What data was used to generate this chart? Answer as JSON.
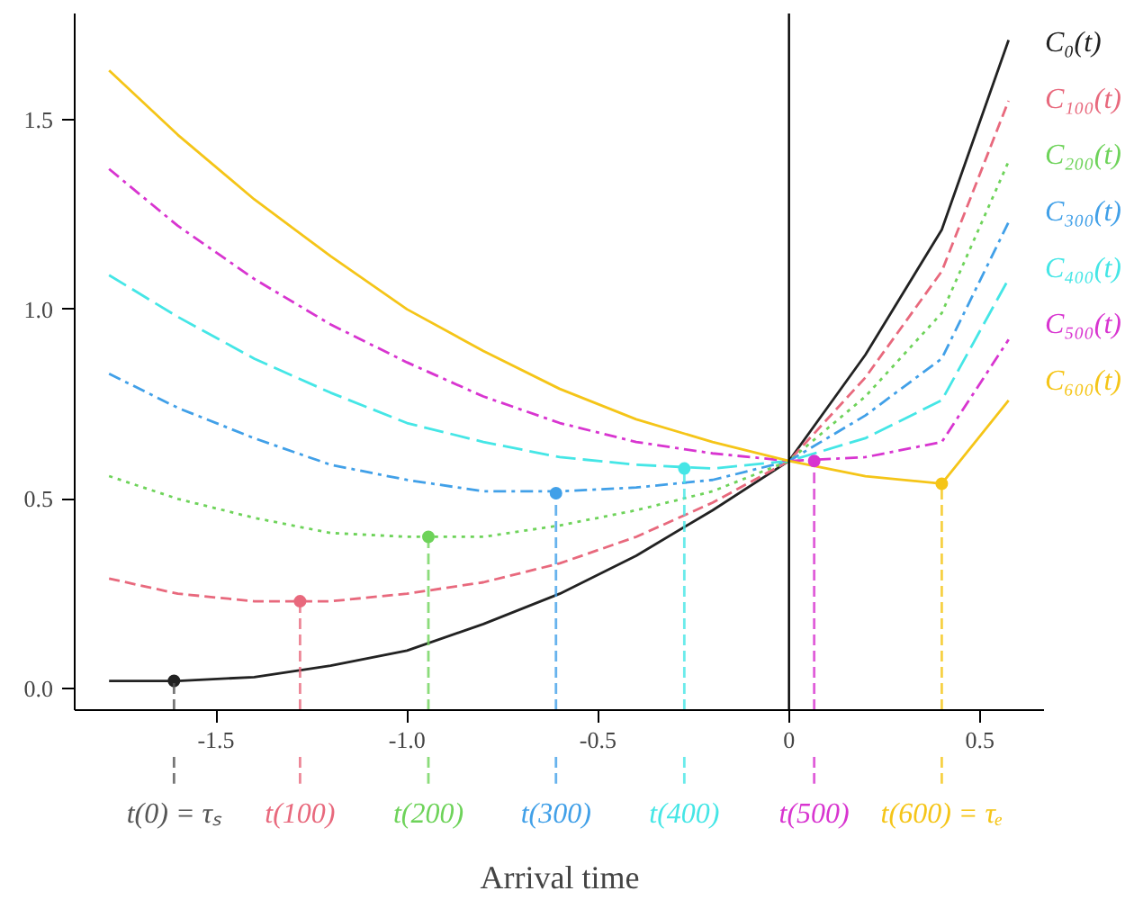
{
  "chart_data": {
    "type": "line",
    "xlabel": "Arrival time",
    "grid": false,
    "x": [
      -1.78,
      -1.6,
      -1.4,
      -1.2,
      -1.0,
      -0.8,
      -0.6,
      -0.4,
      -0.2,
      0,
      0.2,
      0.4,
      0.575
    ],
    "xlim": [
      -1.87,
      0.67
    ],
    "ylim": [
      -0.057,
      1.78
    ],
    "xticks": [
      {
        "value": -1.5,
        "label": "-1.5"
      },
      {
        "value": -1.0,
        "label": "-1.0"
      },
      {
        "value": -0.5,
        "label": "-0.5"
      },
      0,
      0.5
    ],
    "yticks": [
      {
        "value": 0,
        "label": "0.0"
      },
      0.5,
      {
        "value": 1,
        "label": "1.0"
      },
      1.5
    ],
    "series": [
      {
        "name": "C₀(t)",
        "color": "#222222",
        "line_style": "solid",
        "values": [
          0.02,
          0.02,
          0.03,
          0.06,
          0.1,
          0.17,
          0.25,
          0.35,
          0.47,
          0.6,
          0.88,
          1.21,
          1.71
        ]
      },
      {
        "name": "C₁₀₀(t)",
        "color": "#e8697d",
        "line_style": "dashed",
        "values": [
          0.29,
          0.25,
          0.23,
          0.23,
          0.25,
          0.28,
          0.33,
          0.4,
          0.49,
          0.6,
          0.82,
          1.1,
          1.55
        ]
      },
      {
        "name": "C₂₀₀(t)",
        "color": "#6ed35a",
        "line_style": "dotted",
        "values": [
          0.56,
          0.5,
          0.45,
          0.41,
          0.4,
          0.4,
          0.43,
          0.47,
          0.52,
          0.6,
          0.77,
          0.99,
          1.39
        ]
      },
      {
        "name": "C₃₀₀(t)",
        "color": "#41a0e8",
        "line_style": "dashdot",
        "values": [
          0.83,
          0.74,
          0.66,
          0.59,
          0.55,
          0.52,
          0.52,
          0.53,
          0.55,
          0.6,
          0.72,
          0.87,
          1.23
        ]
      },
      {
        "name": "C₄₀₀(t)",
        "color": "#45e6e6",
        "line_style": "longdash",
        "values": [
          1.09,
          0.98,
          0.87,
          0.78,
          0.7,
          0.65,
          0.61,
          0.59,
          0.58,
          0.6,
          0.66,
          0.76,
          1.08
        ]
      },
      {
        "name": "C₅₀₀(t)",
        "color": "#d835d0",
        "line_style": "dashdot",
        "values": [
          1.37,
          1.22,
          1.08,
          0.96,
          0.86,
          0.77,
          0.7,
          0.65,
          0.62,
          0.6,
          0.61,
          0.65,
          0.92
        ]
      },
      {
        "name": "C₆₀₀(t)",
        "color": "#f5c518",
        "line_style": "solid",
        "values": [
          1.63,
          1.46,
          1.29,
          1.14,
          1.0,
          0.89,
          0.79,
          0.71,
          0.65,
          0.6,
          0.56,
          0.54,
          0.76
        ]
      },
      {
        "type": "scatter",
        "marker": "circle",
        "x": [
          -1.61,
          -1.28,
          -0.944,
          -0.61,
          -0.274,
          0.066,
          0.4
        ],
        "values": [
          0.02,
          0.23,
          0.4,
          0.515,
          0.58,
          0.6,
          0.54
        ],
        "colors": [
          "#222222",
          "#e8697d",
          "#6ed35a",
          "#41a0e8",
          "#45e6e6",
          "#d835d0",
          "#f5c518"
        ]
      }
    ],
    "ref_lines": [
      {
        "axis": "x",
        "value": 0,
        "color": "#000000",
        "line_style": "solid"
      },
      {
        "axis": "x",
        "value": -1.61,
        "label": "t(0) = τₛ",
        "color": "#555555",
        "line_style": "dashed"
      },
      {
        "axis": "x",
        "value": -1.28,
        "label": "t(100)",
        "color": "#e8697d",
        "line_style": "dashed"
      },
      {
        "axis": "x",
        "value": -0.944,
        "label": "t(200)",
        "color": "#6ed35a",
        "line_style": "dashed"
      },
      {
        "axis": "x",
        "value": -0.61,
        "label": "t(300)",
        "color": "#41a0e8",
        "line_style": "dashed"
      },
      {
        "axis": "x",
        "value": -0.274,
        "label": "t(400)",
        "color": "#45e6e6",
        "line_style": "dashed"
      },
      {
        "axis": "x",
        "value": 0.066,
        "label": "t(500)",
        "color": "#d835d0",
        "line_style": "dashed"
      },
      {
        "axis": "x",
        "value": 0.4,
        "label": "t(600) = τₑ",
        "color": "#f5c518",
        "line_style": "dashed"
      }
    ]
  }
}
